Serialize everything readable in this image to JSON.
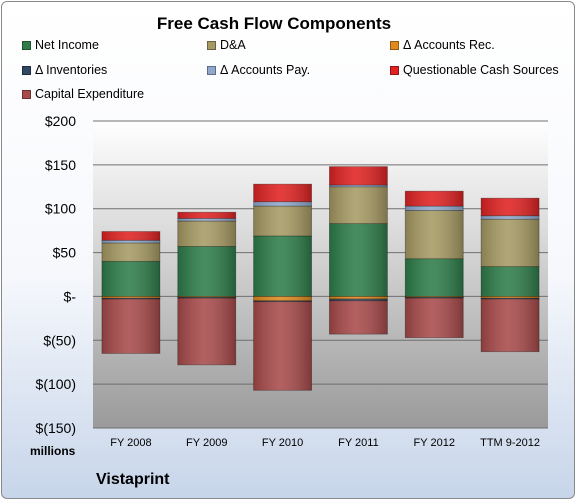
{
  "chart_data": {
    "type": "bar",
    "stacked": true,
    "title": "Free Cash Flow Components",
    "units_label": "millions",
    "company_label": "Vistaprint",
    "categories": [
      "FY 2008",
      "FY 2009",
      "FY 2010",
      "FY 2011",
      "FY 2012",
      "TTM 9-2012"
    ],
    "ylim": [
      -150,
      200
    ],
    "yticks": [
      200,
      150,
      100,
      50,
      0,
      -50,
      -100,
      -150
    ],
    "ytick_labels": [
      "$200",
      "$150",
      "$100",
      "$50",
      "$-",
      "$(50)",
      "$(100)",
      "$(150)"
    ],
    "grid": true,
    "legend_position": "top",
    "series": [
      {
        "name": "Net Income",
        "color": "#2e7d4a",
        "values": [
          40,
          57,
          69,
          83,
          43,
          34
        ]
      },
      {
        "name": "D&A",
        "color": "#a69a63",
        "values": [
          21,
          29,
          34,
          42,
          55,
          54
        ]
      },
      {
        "name": "Δ Accounts Rec.",
        "color": "#e08a1e",
        "values": [
          -2,
          -1,
          -5,
          -3,
          -1,
          -2
        ]
      },
      {
        "name": "Δ Inventories",
        "color": "#2f4863",
        "values": [
          -1,
          -1,
          -1,
          -2,
          -1,
          -1
        ]
      },
      {
        "name": "Δ Accounts Pay.",
        "color": "#8fa8cc",
        "values": [
          3,
          3,
          5,
          2,
          5,
          4
        ]
      },
      {
        "name": "Questionable Cash Sources",
        "color": "#e02222",
        "values": [
          10,
          7,
          20,
          21,
          17,
          20
        ]
      },
      {
        "name": "Capital Expenditure",
        "color": "#a84a4a",
        "values": [
          -62,
          -76,
          -101,
          -38,
          -45,
          -60
        ]
      }
    ]
  }
}
